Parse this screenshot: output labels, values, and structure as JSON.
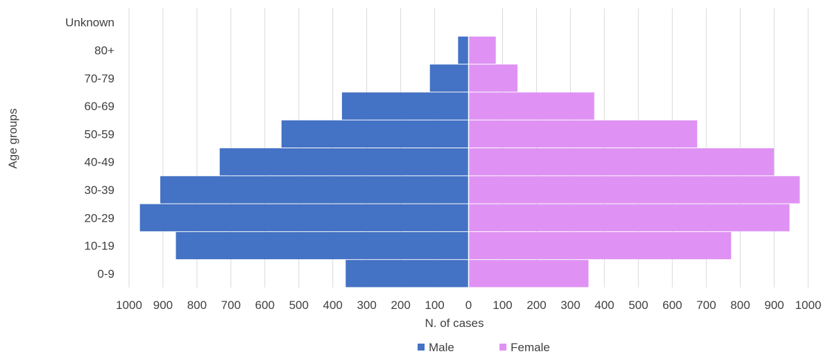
{
  "chart_data": {
    "type": "bar",
    "orientation": "horizontal",
    "layout": "population-pyramid",
    "categories": [
      "0-9",
      "10-19",
      "20-29",
      "30-39",
      "40-49",
      "50-59",
      "60-69",
      "70-79",
      "80+",
      "Unknown"
    ],
    "series": [
      {
        "name": "Male",
        "color": "#4472C4",
        "side": "left",
        "values": [
          362,
          862,
          968,
          908,
          733,
          551,
          373,
          114,
          31,
          0
        ]
      },
      {
        "name": "Female",
        "color": "#DF92F3",
        "side": "right",
        "values": [
          353,
          773,
          945,
          975,
          899,
          673,
          370,
          144,
          80,
          0
        ]
      }
    ],
    "xticks": [
      "1000",
      "900",
      "800",
      "700",
      "600",
      "500",
      "400",
      "300",
      "200",
      "100",
      "0",
      "100",
      "200",
      "300",
      "400",
      "500",
      "600",
      "700",
      "800",
      "900",
      "1000"
    ],
    "xlim": [
      -1000,
      1000
    ],
    "xlabel": "N. of cases",
    "ylabel": "Age groups",
    "grid": "vertical",
    "legend": "bottom-center"
  }
}
